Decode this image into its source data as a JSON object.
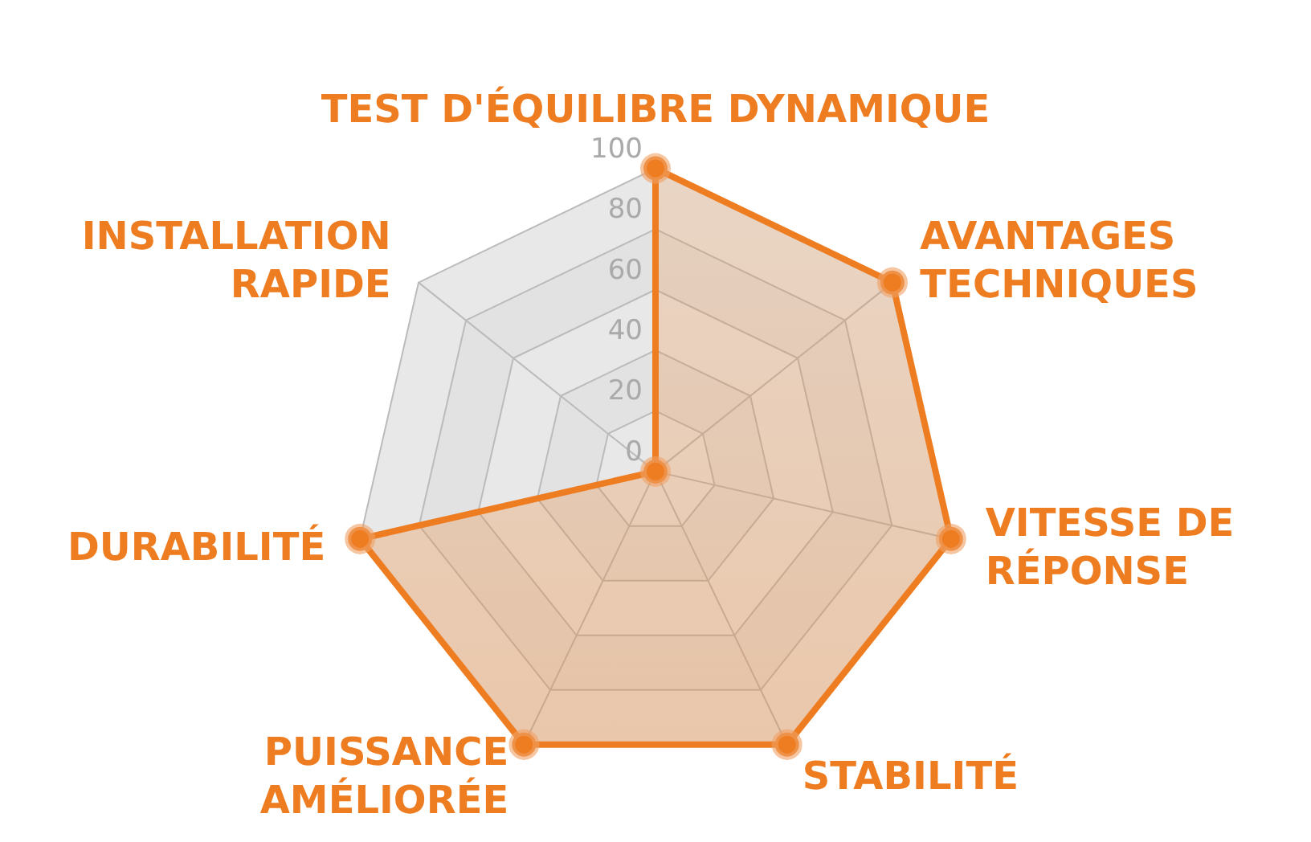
{
  "chart_data": {
    "type": "radar",
    "categories": [
      "TEST D'ÉQUILIBRE DYNAMIQUE",
      "AVANTAGES TECHNIQUES",
      "VITESSE DE RÉPONSE",
      "STABILITÉ",
      "PUISSANCE AMÉLIORÉE",
      "DURABILITÉ",
      "INSTALLATION RAPIDE"
    ],
    "series": [
      {
        "color": "#ee7d22",
        "values": [
          100,
          100,
          100,
          100,
          100,
          100,
          0
        ]
      }
    ],
    "ylim": [
      0,
      100
    ],
    "yticks": [
      0,
      20,
      40,
      60,
      80,
      100
    ],
    "marker": "circle",
    "grid": true
  }
}
